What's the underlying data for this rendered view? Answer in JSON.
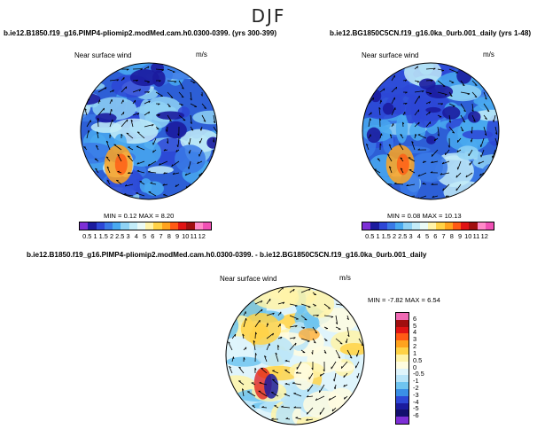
{
  "page_title": "DJF",
  "panels": [
    {
      "title": "b.ie12.B1850.f19_g16.PIMP4-pliomip2.modMed.cam.h0.0300-0399. (yrs 300-399)",
      "map_title": "Near surface wind",
      "units": "m/s",
      "stats": "MIN =    0.12  MAX =    8.20"
    },
    {
      "title": "b.ie12.BG1850C5CN.f19_g16.0ka_0urb.001_daily (yrs 1-48)",
      "map_title": "Near surface wind",
      "units": "m/s",
      "stats": "MIN =    0.08  MAX =   10.13"
    },
    {
      "title": "b.ie12.B1850.f19_g16.PIMP4-pliomip2.modMed.cam.h0.0300-0399. - b.ie12.BG1850C5CN.f19_g16.0ka_0urb.001_daily",
      "map_title": "Near surface wind",
      "units": "m/s",
      "stats": "MIN =   -7.82  MAX =    6.54"
    }
  ],
  "abs_colorbar": {
    "labels": [
      "0.5",
      "1",
      "1.5",
      "2",
      "2.5",
      "3",
      "4",
      "5",
      "6",
      "7",
      "8",
      "9",
      "10",
      "11",
      "12"
    ],
    "colors": [
      "#7d2fd6",
      "#1b1b9e",
      "#2d47d6",
      "#3a79e6",
      "#49a9f0",
      "#8fd2f5",
      "#c3ecf8",
      "#eafaf6",
      "#fff3a8",
      "#ffd246",
      "#ffa31e",
      "#ff5a14",
      "#e01414",
      "#a00f0f",
      "#ff8ac8",
      "#f050b4"
    ]
  },
  "diff_colorbar": {
    "labels": [
      "6",
      "5",
      "4",
      "3",
      "2",
      "1",
      "0.5",
      "0",
      "-0.5",
      "-1",
      "-2",
      "-3",
      "-4",
      "-5",
      "-6"
    ],
    "colors": [
      "#f06ab4",
      "#a00f0f",
      "#e01414",
      "#ff5a14",
      "#ffa31e",
      "#ffd246",
      "#fff3a8",
      "#fffce0",
      "#dff4fb",
      "#b8e4f8",
      "#6fc4f0",
      "#3a8fe6",
      "#2d47d6",
      "#1b1b9e",
      "#120f6e",
      "#7d2fd6"
    ]
  },
  "maps": {
    "ocean": "#2d5fd6",
    "land_low": "#49a9f0",
    "blob_dark": "#1b1b9e",
    "warm": "#ffa31e",
    "diff_base": "#dff4fb"
  }
}
